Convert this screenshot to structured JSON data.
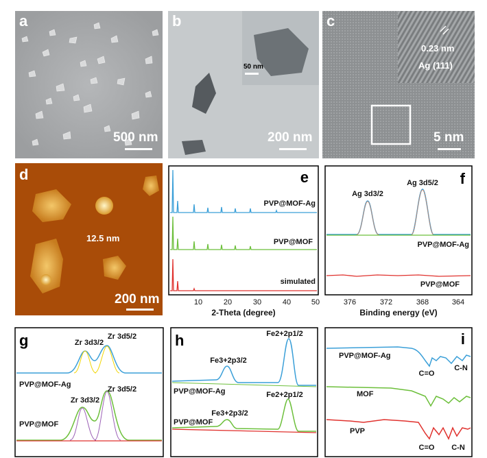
{
  "panels": {
    "a": {
      "label": "a",
      "scale": "500 nm"
    },
    "b": {
      "label": "b",
      "scale": "200 nm",
      "inset_scale": "50 nm"
    },
    "c": {
      "label": "c",
      "scale": "5 nm",
      "lattice": "0.23 nm",
      "plane": "Ag (111)"
    },
    "d": {
      "label": "d",
      "scale": "200 nm",
      "height": "12.5 nm"
    },
    "e": {
      "label": "e",
      "xlabel": "2-Theta (degree)",
      "ticks": [
        "10",
        "20",
        "30",
        "40",
        "50"
      ],
      "curves": [
        "PVP@MOF-Ag",
        "PVP@MOF",
        "simulated"
      ]
    },
    "f": {
      "label": "f",
      "xlabel": "Binding energy (eV)",
      "ticks": [
        "376",
        "372",
        "368",
        "364"
      ],
      "peaks": [
        "Ag 3d3/2",
        "Ag 3d5/2"
      ],
      "curves": [
        "PVP@MOF-Ag",
        "PVP@MOF"
      ]
    },
    "g": {
      "label": "g",
      "peaks": [
        "Zr 3d3/2",
        "Zr 3d5/2"
      ],
      "curves": [
        "PVP@MOF-Ag",
        "PVP@MOF"
      ]
    },
    "h": {
      "label": "h",
      "peaks": [
        "Fe3+2p3/2",
        "Fe2+2p1/2"
      ],
      "curves": [
        "PVP@MOF-Ag",
        "PVP@MOF"
      ]
    },
    "i": {
      "label": "i",
      "curves": [
        "PVP@MOF-Ag",
        "MOF",
        "PVP"
      ],
      "bands": [
        "C=O",
        "C-N"
      ]
    }
  },
  "colors": {
    "blue": "#3a9fd8",
    "green": "#6cbf3a",
    "red": "#e0312d",
    "orange": "#e87d4a",
    "afm_bg": "#b5530a"
  }
}
